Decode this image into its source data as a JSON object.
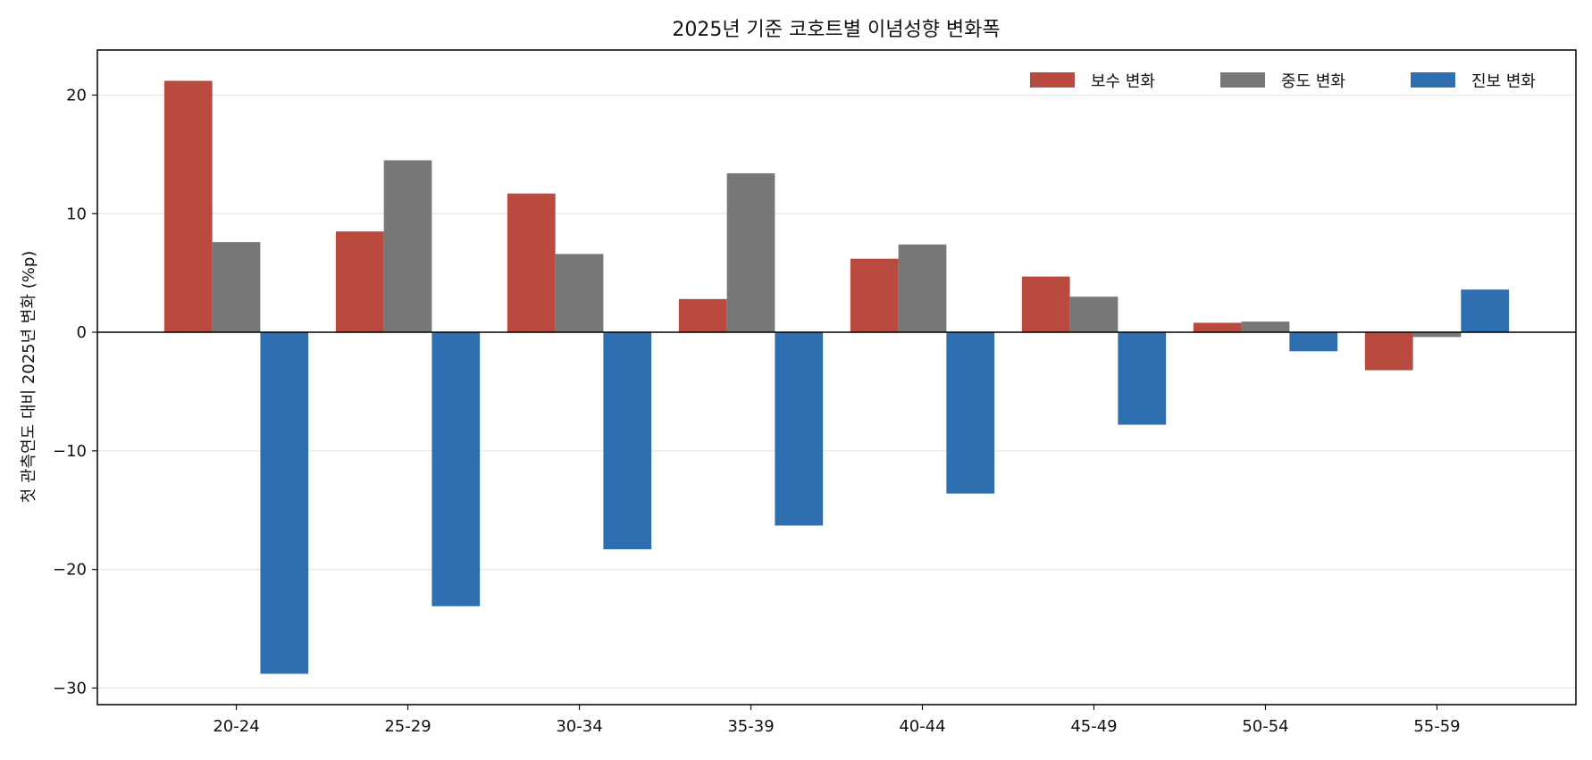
{
  "chart_data": {
    "type": "bar",
    "title": "2025년 기준 코호트별 이념성향 변화폭",
    "xlabel": "",
    "ylabel": "첫 관측연도 대비 2025년 변화 (%p)",
    "categories": [
      "20-24",
      "25-29",
      "30-34",
      "35-39",
      "40-44",
      "45-49",
      "50-54",
      "55-59"
    ],
    "series": [
      {
        "name": "보수 변화",
        "color": "#b94a40",
        "values": [
          21.2,
          8.5,
          11.7,
          2.8,
          6.2,
          4.7,
          0.8,
          -3.2
        ]
      },
      {
        "name": "중도 변화",
        "color": "#777777",
        "values": [
          7.6,
          14.5,
          6.6,
          13.4,
          7.4,
          3.0,
          0.9,
          -0.4
        ]
      },
      {
        "name": "진보 변화",
        "color": "#2f6faf",
        "values": [
          -28.8,
          -23.1,
          -18.3,
          -16.3,
          -13.6,
          -7.8,
          -1.6,
          3.6
        ]
      }
    ],
    "ylim": [
      -31.4,
      23.8
    ],
    "yticks": [
      -30,
      -20,
      -10,
      0,
      10,
      20
    ],
    "grid": "horizontal",
    "legend": "top-right",
    "zero_line": true
  }
}
